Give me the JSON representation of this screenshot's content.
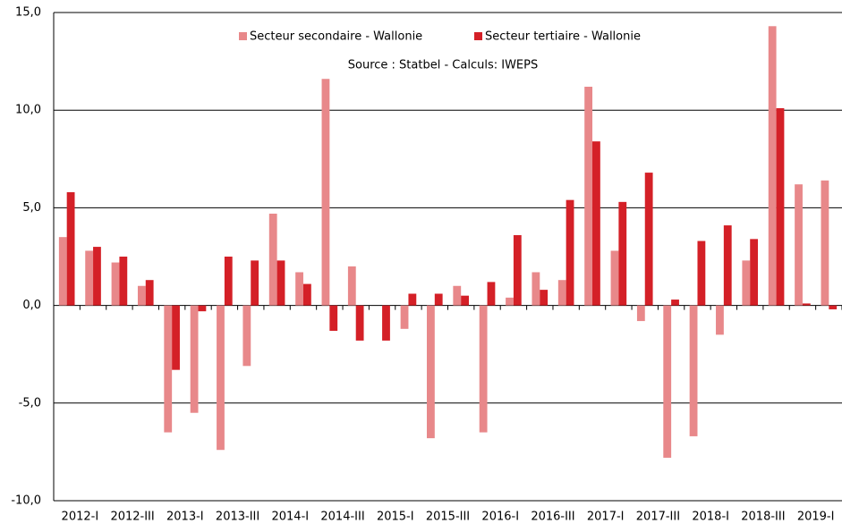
{
  "chart_data": {
    "type": "bar",
    "subtitle": "Source : Statbel - Calculs: IWEPS",
    "categories": [
      "2012-I",
      null,
      "2012-III",
      null,
      "2013-I",
      null,
      "2013-III",
      null,
      "2014-I",
      null,
      "2014-III",
      null,
      "2015-I",
      null,
      "2015-III",
      null,
      "2016-I",
      null,
      "2016-III",
      null,
      "2017-I",
      null,
      "2017-III",
      null,
      "2018-I",
      null,
      "2018-III",
      null,
      "2019-I",
      null
    ],
    "series": [
      {
        "name": "Secteur secondaire - Wallonie",
        "color": "#e8888a",
        "values": [
          3.5,
          2.8,
          2.2,
          1.0,
          -6.5,
          -5.5,
          -7.4,
          -3.1,
          4.7,
          1.7,
          11.6,
          2.0,
          0.0,
          -1.2,
          -6.8,
          1.0,
          -6.5,
          0.4,
          1.7,
          1.3,
          11.2,
          2.8,
          -0.8,
          -7.8,
          -6.7,
          -1.5,
          2.3,
          14.3,
          6.2,
          6.4
        ]
      },
      {
        "name": "Secteur tertiaire - Wallonie",
        "color": "#d42027",
        "values": [
          5.8,
          3.0,
          2.5,
          1.3,
          -3.3,
          -0.3,
          2.5,
          2.3,
          2.3,
          1.1,
          -1.3,
          -1.8,
          -1.8,
          0.6,
          0.6,
          0.5,
          1.2,
          3.6,
          0.8,
          5.4,
          8.4,
          5.3,
          6.8,
          0.3,
          3.3,
          4.1,
          3.4,
          10.1,
          0.1,
          -0.2
        ]
      }
    ],
    "ylim": [
      -10,
      15
    ],
    "yticks": [
      {
        "value": -10,
        "label": "-10,0"
      },
      {
        "value": -5,
        "label": "-5,0"
      },
      {
        "value": 0,
        "label": "0,0"
      },
      {
        "value": 5,
        "label": "5,0"
      },
      {
        "value": 10,
        "label": "10,0"
      },
      {
        "value": 15,
        "label": "15,0"
      }
    ],
    "grid": true
  }
}
